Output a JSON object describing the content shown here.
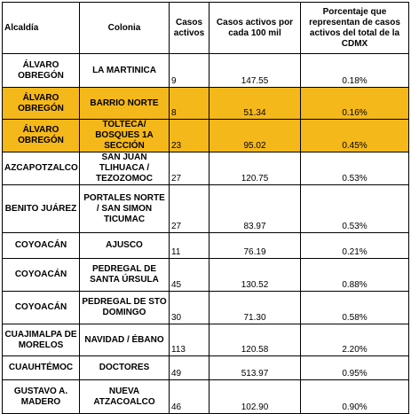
{
  "headers": {
    "alcaldia": "Alcaldía",
    "colonia": "Colonia",
    "casos": "Casos activos",
    "tasa": "Casos activos por cada 100 mil",
    "porcentaje": "Porcentaje que representan de casos activos del total de la CDMX"
  },
  "rows": [
    {
      "alcaldia": "ÁLVARO OBREGÓN",
      "colonia": "LA MARTINICA",
      "casos": "9",
      "tasa": "147.55",
      "porcentaje": "0.18%",
      "highlight": false
    },
    {
      "alcaldia": "ÁLVARO OBREGÓN",
      "colonia": "BARRIO NORTE",
      "casos": "8",
      "tasa": "51.34",
      "porcentaje": "0.16%",
      "highlight": true
    },
    {
      "alcaldia": "ÁLVARO OBREGÓN",
      "colonia": "TOLTECA/ BOSQUES 1A SECCIÓN",
      "casos": "23",
      "tasa": "95.02",
      "porcentaje": "0.45%",
      "highlight": true
    },
    {
      "alcaldia": "AZCAPOTZALCO",
      "colonia": "SAN JUAN TLIHUACA / TEZOZOMOC",
      "casos": "27",
      "tasa": "120.75",
      "porcentaje": "0.53%",
      "highlight": false
    },
    {
      "alcaldia": "BENITO JUÁREZ",
      "colonia": "PORTALES NORTE / SAN SIMON TICUMAC",
      "casos": "27",
      "tasa": "83.97",
      "porcentaje": "0.53%",
      "highlight": false
    },
    {
      "alcaldia": "COYOACÁN",
      "colonia": "AJUSCO",
      "casos": "11",
      "tasa": "76.19",
      "porcentaje": "0.21%",
      "highlight": false
    },
    {
      "alcaldia": "COYOACÁN",
      "colonia": "PEDREGAL DE SANTA ÚRSULA",
      "casos": "45",
      "tasa": "130.52",
      "porcentaje": "0.88%",
      "highlight": false
    },
    {
      "alcaldia": "COYOACÁN",
      "colonia": "PEDREGAL DE STO DOMINGO",
      "casos": "30",
      "tasa": "71.30",
      "porcentaje": "0.58%",
      "highlight": false
    },
    {
      "alcaldia": "CUAJIMALPA DE MORELOS",
      "colonia": "NAVIDAD / ÉBANO",
      "casos": "113",
      "tasa": "120.58",
      "porcentaje": "2.20%",
      "highlight": false
    },
    {
      "alcaldia": "CUAUHTÉMOC",
      "colonia": "DOCTORES",
      "casos": "49",
      "tasa": "513.97",
      "porcentaje": "0.95%",
      "highlight": false
    },
    {
      "alcaldia": "GUSTAVO A. MADERO",
      "colonia": "NUEVA ATZACOALCO",
      "casos": "46",
      "tasa": "102.90",
      "porcentaje": "0.90%",
      "highlight": false
    }
  ],
  "colors": {
    "highlight": "#f5b81a"
  }
}
